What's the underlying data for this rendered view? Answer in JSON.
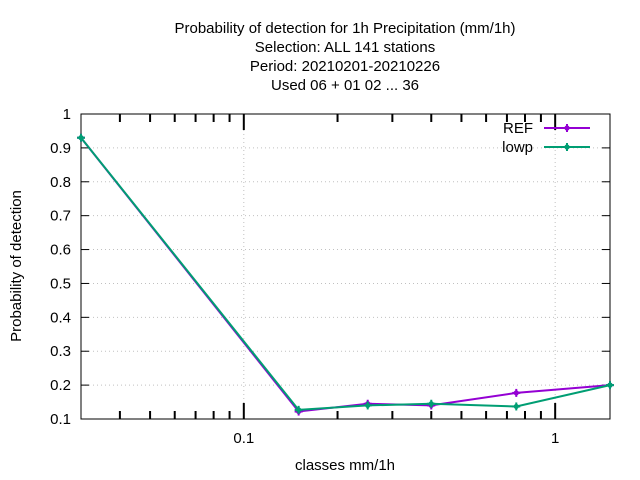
{
  "chart_data": {
    "type": "line",
    "title": [
      "Probability of detection  for 1h Precipitation (mm/1h)",
      "Selection: ALL    141 stations",
      "Period: 20210201-20210226",
      "Used  06  + 01 02 ... 36"
    ],
    "xlabel": "classes mm/1h",
    "ylabel": "Probability of detection",
    "xscale": "log",
    "xlim": [
      0.03,
      1.5
    ],
    "ylim": [
      0.1,
      1.0
    ],
    "xticks": [
      {
        "value": 0.1,
        "label": "0.1"
      },
      {
        "value": 1,
        "label": "1"
      }
    ],
    "yticks": [
      {
        "value": 0.1,
        "label": "0.1"
      },
      {
        "value": 0.2,
        "label": "0.2"
      },
      {
        "value": 0.3,
        "label": "0.3"
      },
      {
        "value": 0.4,
        "label": "0.4"
      },
      {
        "value": 0.5,
        "label": "0.5"
      },
      {
        "value": 0.6,
        "label": "0.6"
      },
      {
        "value": 0.7,
        "label": "0.7"
      },
      {
        "value": 0.8,
        "label": "0.8"
      },
      {
        "value": 0.9,
        "label": "0.9"
      },
      {
        "value": 1.0,
        "label": "1"
      }
    ],
    "grid": true,
    "legend_position": "top-right",
    "series": [
      {
        "name": "REF",
        "color": "#9400d3",
        "x": [
          0.03,
          0.15,
          0.25,
          0.4,
          0.75,
          1.5
        ],
        "y": [
          0.93,
          0.122,
          0.145,
          0.14,
          0.177,
          0.2
        ]
      },
      {
        "name": "lowp",
        "color": "#009e73",
        "x": [
          0.03,
          0.15,
          0.25,
          0.4,
          0.75,
          1.5
        ],
        "y": [
          0.93,
          0.127,
          0.14,
          0.145,
          0.137,
          0.2
        ]
      }
    ]
  }
}
